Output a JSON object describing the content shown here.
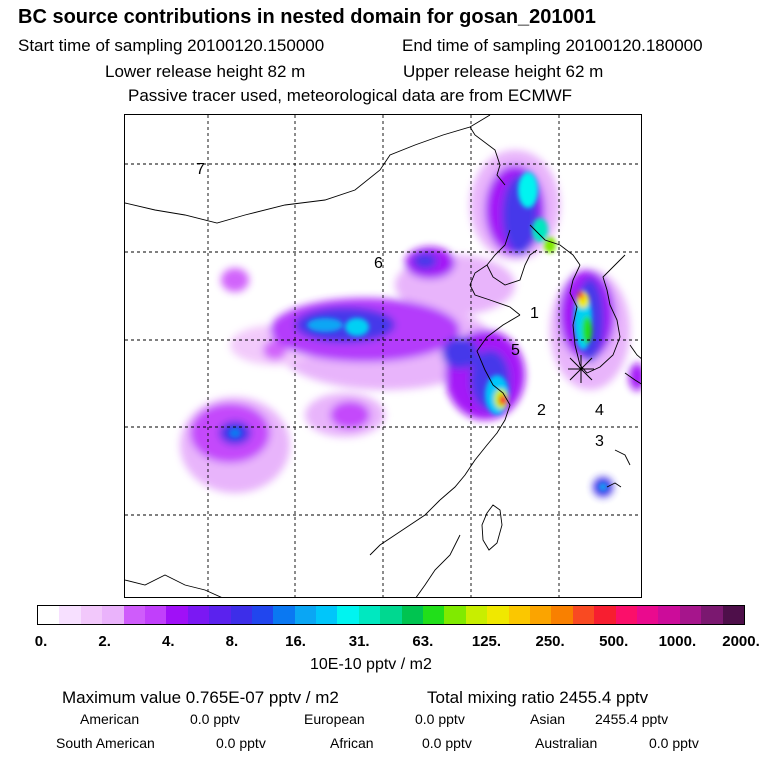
{
  "header": {
    "title": "BC  source contributions in nested domain for gosan_201001",
    "start_time_label": "Start time of sampling 20100120.150000",
    "end_time_label": "End time of sampling 20100120.180000",
    "lower_release_label": "Lower release height   82 m",
    "upper_release_label": "Upper release height   62 m",
    "tracer_note": "Passive tracer used, meteorological data are from ECMWF"
  },
  "map": {
    "region_labels": [
      "1",
      "2",
      "3",
      "4",
      "5",
      "6",
      "7"
    ],
    "receptor_marker": "receptor-star-icon"
  },
  "colorbar": {
    "tick_labels": [
      "0.",
      "2.",
      "4.",
      "8.",
      "16.",
      "31.",
      "63.",
      "125.",
      "250.",
      "500.",
      "1000.",
      "2000."
    ],
    "units": "10E-10 pptv / m2",
    "colors": [
      "#ffffff",
      "#f7e0ff",
      "#f2c8fb",
      "#eab3fb",
      "#cf5cfb",
      "#c13ffb",
      "#a010f7",
      "#7b18f3",
      "#5b22ee",
      "#3d2ee9",
      "#2146ee",
      "#0a78f2",
      "#0aa6f4",
      "#00c6fa",
      "#00f4f0",
      "#00e8c0",
      "#00d890",
      "#00c450",
      "#21df1a",
      "#80ea00",
      "#c8ee00",
      "#f0e800",
      "#fbc700",
      "#fba400",
      "#f98000",
      "#f94a22",
      "#f71e30",
      "#fb0f6a",
      "#ea0a8e",
      "#cc0c9a",
      "#a6158c",
      "#7b1870",
      "#4e0f4a"
    ]
  },
  "summary": {
    "max_value": "Maximum value  0.765E-07 pptv / m2",
    "total_mixing": "Total mixing ratio     2455.4 pptv",
    "rows": [
      [
        {
          "name": "American",
          "value": "0.0 pptv"
        },
        {
          "name": "European",
          "value": "0.0 pptv"
        },
        {
          "name": "Asian",
          "value": "2455.4 pptv"
        }
      ],
      [
        {
          "name": "South American",
          "value": "0.0 pptv"
        },
        {
          "name": "African",
          "value": "0.0 pptv"
        },
        {
          "name": "Australian",
          "value": "0.0 pptv"
        }
      ]
    ]
  }
}
